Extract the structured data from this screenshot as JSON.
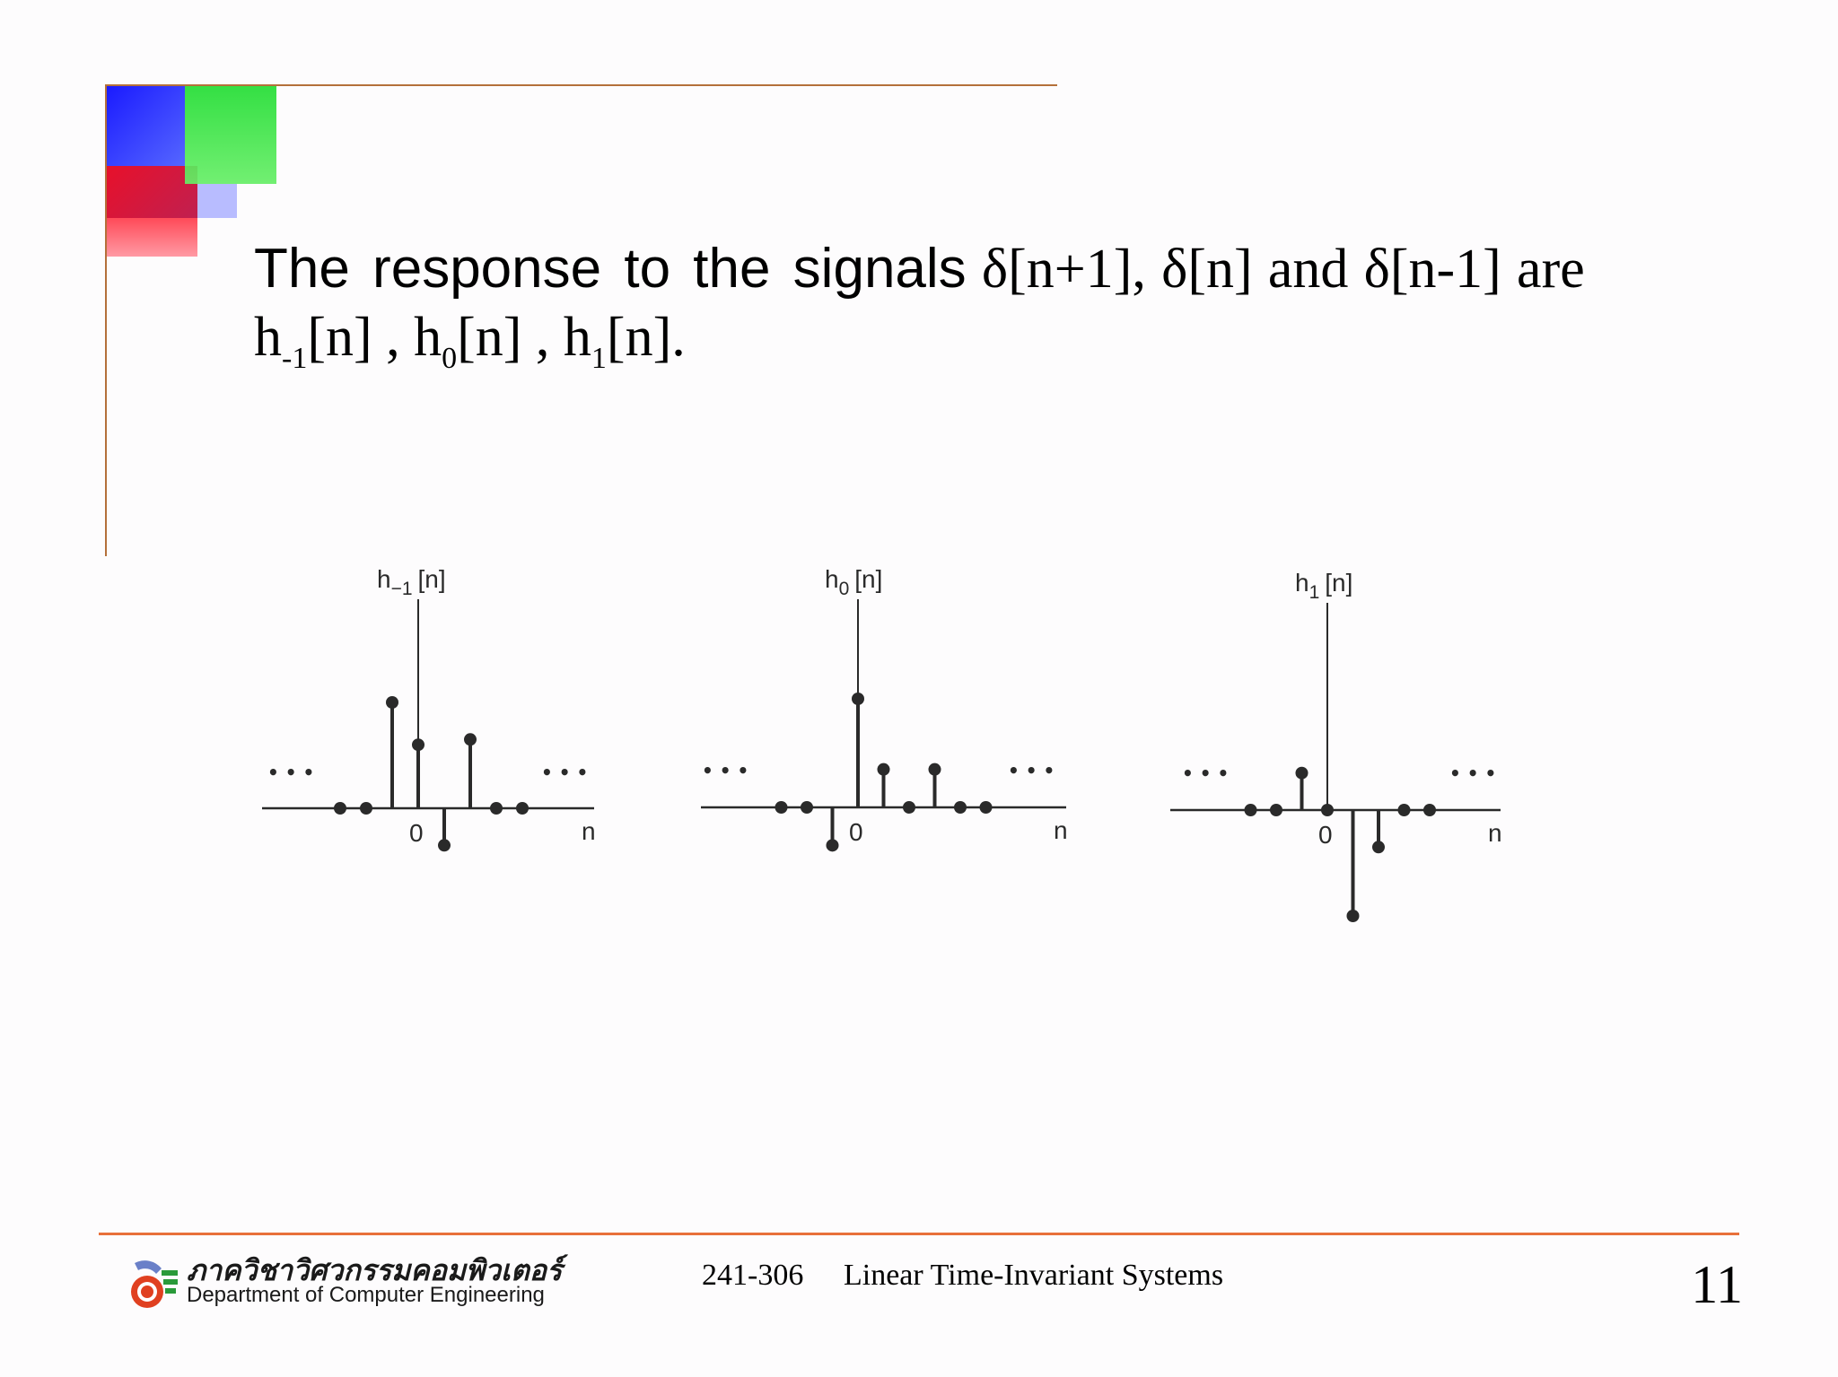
{
  "slide": {
    "body_line1": {
      "prefix": "The response to the signals",
      "signal_1": "δ[n+1],",
      "signal_2": "δ[n]",
      "conj": "and",
      "signal_3": "δ[n-1]",
      "verb": "are"
    },
    "body_line2": {
      "h1_base": "h",
      "h1_sub": "-1",
      "h1_arg": "[n] ,",
      "h2_base": "h",
      "h2_sub": "0",
      "h2_arg": "[n] ,",
      "h3_base": "h",
      "h3_sub": "1",
      "h3_arg": "[n]."
    }
  },
  "chart_data": [
    {
      "type": "stem",
      "title": "h-1 [n]",
      "title_base": "h",
      "title_sub": "−1",
      "title_arg": "[n]",
      "xlabel": "n",
      "origin_label": "0",
      "ellipsis": "• • •",
      "x": [
        -3,
        -2,
        -1,
        0,
        1,
        2,
        3,
        4
      ],
      "values": [
        0,
        0,
        1.0,
        0.6,
        -0.35,
        0.65,
        0,
        0
      ]
    },
    {
      "type": "stem",
      "title": "h0 [n]",
      "title_base": "h",
      "title_sub": "0",
      "title_arg": "[n]",
      "xlabel": "n",
      "origin_label": "0",
      "ellipsis": "• • •",
      "x": [
        -3,
        -2,
        -1,
        0,
        1,
        2,
        3,
        4,
        5
      ],
      "values": [
        0,
        0,
        -0.35,
        1.0,
        0.35,
        0,
        0.35,
        0,
        0
      ]
    },
    {
      "type": "stem",
      "title": "h1 [n]",
      "title_base": "h",
      "title_sub": "1",
      "title_arg": "[n]",
      "xlabel": "n",
      "origin_label": "0",
      "ellipsis": "• • •",
      "x": [
        -3,
        -2,
        -1,
        0,
        1,
        2,
        3,
        4
      ],
      "values": [
        0,
        0,
        0.35,
        0,
        -1.0,
        -0.35,
        0,
        0
      ]
    }
  ],
  "footer": {
    "dept_thai": "ภาควิชาวิศวกรรมคอมพิวเตอร์",
    "dept_en": "Department of Computer Engineering",
    "course_code": "241-306",
    "course_title": "Linear Time-Invariant Systems",
    "page_number": "11"
  },
  "colors": {
    "rule_top": "#b4703a",
    "rule_bottom": "#e8703a",
    "ink": "#2a2a2a"
  }
}
